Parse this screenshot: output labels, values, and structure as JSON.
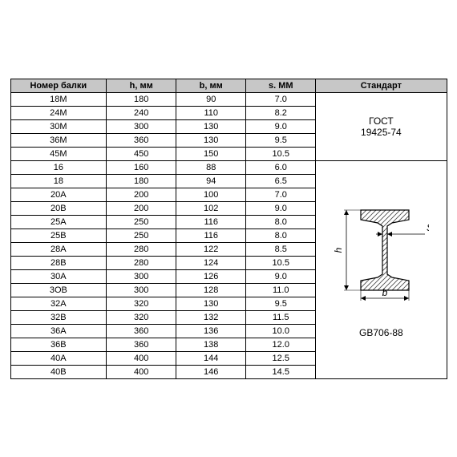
{
  "headers": {
    "num": "Номер балки",
    "h": "h, мм",
    "b": "b, мм",
    "s": "s. ММ",
    "std": "Стандарт"
  },
  "group1": {
    "standard": "ГОСТ 19425-74",
    "rows": [
      {
        "num": "18М",
        "h": "180",
        "b": "90",
        "s": "7.0"
      },
      {
        "num": "24М",
        "h": "240",
        "b": "110",
        "s": "8.2"
      },
      {
        "num": "30М",
        "h": "300",
        "b": "130",
        "s": "9.0"
      },
      {
        "num": "36М",
        "h": "360",
        "b": "130",
        "s": "9.5"
      },
      {
        "num": "45М",
        "h": "450",
        "b": "150",
        "s": "10.5"
      }
    ]
  },
  "group2": {
    "standard": "GB706-88",
    "diagram": {
      "h_label": "h",
      "b_label": "b",
      "s_label": "S"
    },
    "rows": [
      {
        "num": "16",
        "h": "160",
        "b": "88",
        "s": "6.0"
      },
      {
        "num": "18",
        "h": "180",
        "b": "94",
        "s": "6.5"
      },
      {
        "num": "20А",
        "h": "200",
        "b": "100",
        "s": "7.0"
      },
      {
        "num": "20В",
        "h": "200",
        "b": "102",
        "s": "9.0"
      },
      {
        "num": "25А",
        "h": "250",
        "b": "116",
        "s": "8.0"
      },
      {
        "num": "25В",
        "h": "250",
        "b": "116",
        "s": "8.0"
      },
      {
        "num": "28А",
        "h": "280",
        "b": "122",
        "s": "8.5"
      },
      {
        "num": "28В",
        "h": "280",
        "b": "124",
        "s": "10.5"
      },
      {
        "num": "30А",
        "h": "300",
        "b": "126",
        "s": "9.0"
      },
      {
        "num": "3ОВ",
        "h": "300",
        "b": "128",
        "s": "11.0"
      },
      {
        "num": "32А",
        "h": "320",
        "b": "130",
        "s": "9.5"
      },
      {
        "num": "32В",
        "h": "320",
        "b": "132",
        "s": "11.5"
      },
      {
        "num": "36А",
        "h": "360",
        "b": "136",
        "s": "10.0"
      },
      {
        "num": "36В",
        "h": "360",
        "b": "138",
        "s": "12.0"
      },
      {
        "num": "40А",
        "h": "400",
        "b": "144",
        "s": "12.5"
      },
      {
        "num": "40В",
        "h": "400",
        "b": "146",
        "s": "14.5"
      }
    ]
  },
  "style": {
    "header_bg": "#c7c7c7",
    "border_color": "#000000",
    "hatch_color": "#444444",
    "font_size_cell": 11,
    "font_size_header": 11
  }
}
